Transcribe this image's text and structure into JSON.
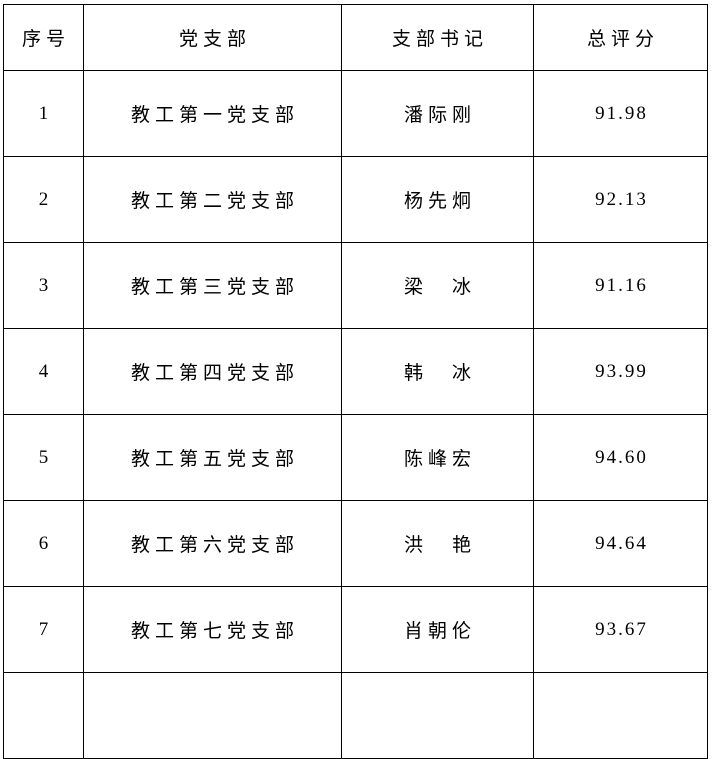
{
  "page": {
    "background": "#ffffff",
    "text_color": "#000000",
    "border_color": "#000000"
  },
  "table": {
    "headers": [
      {
        "label": "序号"
      },
      {
        "label": "党支部"
      },
      {
        "label": "支部书记"
      },
      {
        "label": "总评分"
      }
    ],
    "rows": [
      {
        "no": "1",
        "branch": "教工第一党支部",
        "secretary": "潘际刚",
        "score": "91.98"
      },
      {
        "no": "2",
        "branch": "教工第二党支部",
        "secretary": "杨先炯",
        "score": "92.13"
      },
      {
        "no": "3",
        "branch": "教工第三党支部",
        "secretary": "梁　冰",
        "score": "91.16"
      },
      {
        "no": "4",
        "branch": "教工第四党支部",
        "secretary": "韩　冰",
        "score": "93.99"
      },
      {
        "no": "5",
        "branch": "教工第五党支部",
        "secretary": "陈峰宏",
        "score": "94.60"
      },
      {
        "no": "6",
        "branch": "教工第六党支部",
        "secretary": "洪　艳",
        "score": "94.64"
      },
      {
        "no": "7",
        "branch": "教工第七党支部",
        "secretary": "肖朝伦",
        "score": "93.67"
      }
    ]
  }
}
